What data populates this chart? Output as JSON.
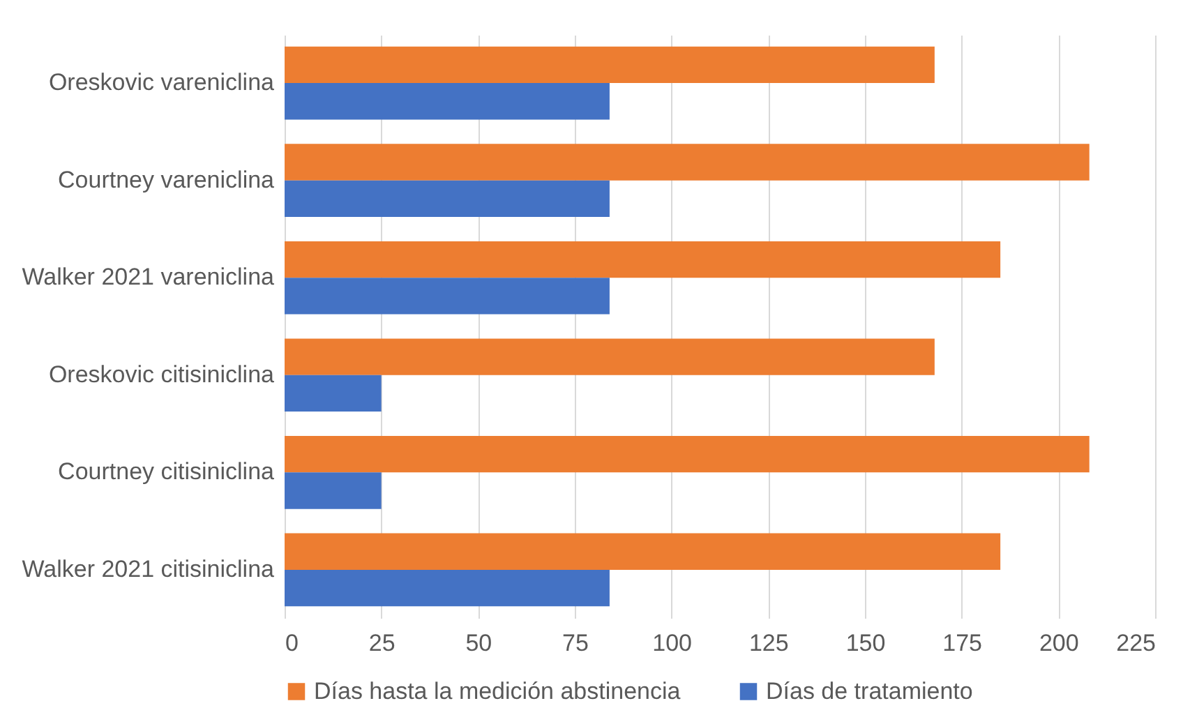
{
  "chart_data": {
    "type": "bar",
    "orientation": "horizontal",
    "categories": [
      "Oreskovic vareniclina",
      "Courtney vareniclina",
      "Walker 2021 vareniclina",
      "Oreskovic citisiniclina",
      "Courtney citisiniclina",
      "Walker 2021 citisiniclina"
    ],
    "series": [
      {
        "name": "Días hasta la medición abstinencia",
        "color": "#ed7d31",
        "values": [
          168,
          208,
          185,
          168,
          208,
          185
        ]
      },
      {
        "name": "Días de tratamiento",
        "color": "#4472c4",
        "values": [
          84,
          84,
          84,
          25,
          25,
          84
        ]
      }
    ],
    "xlim": [
      0,
      225
    ],
    "xticks": [
      0,
      25,
      50,
      75,
      100,
      125,
      150,
      175,
      200,
      225
    ],
    "grid": "x",
    "legend": "bottom"
  }
}
